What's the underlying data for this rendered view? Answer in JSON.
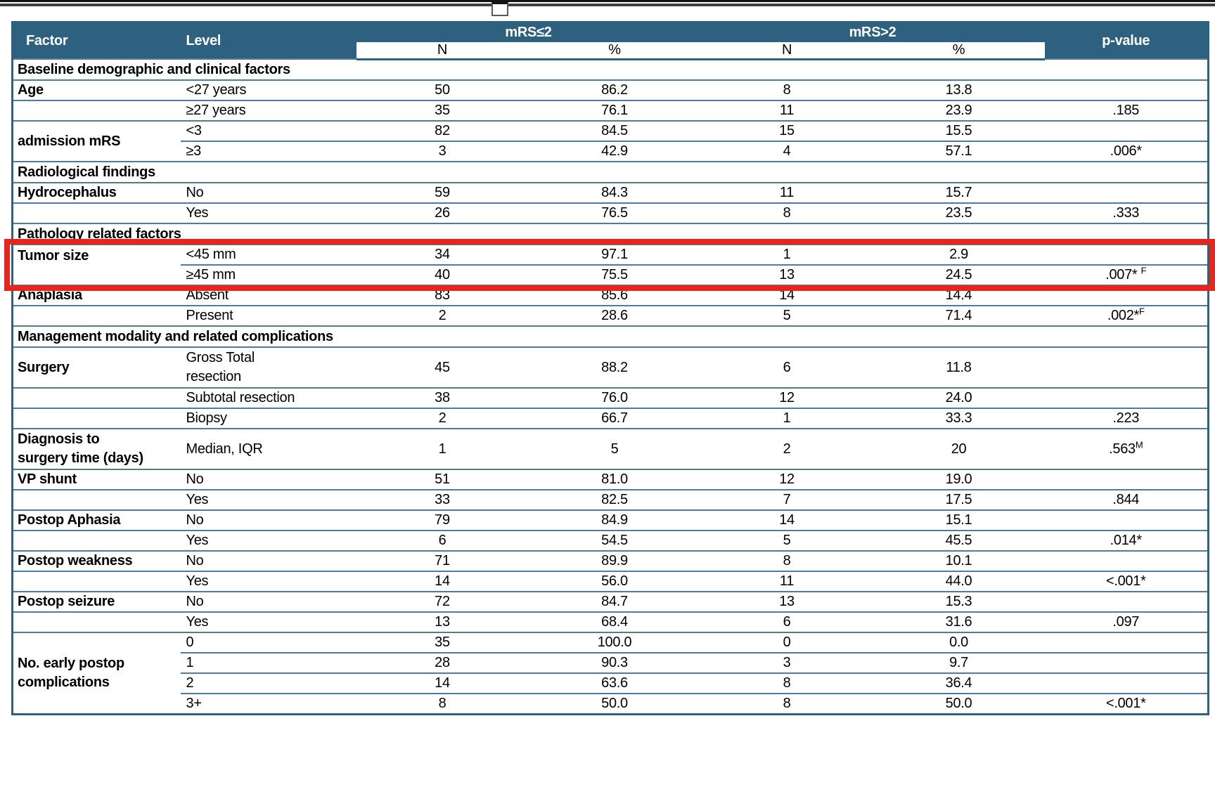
{
  "colors": {
    "header_bg": "#2e617f",
    "row_border": "#4d7d9c",
    "highlight_box": "#e8251c"
  },
  "table": {
    "header": {
      "factor": "Factor",
      "level": "Level",
      "group1": "mRS≤2",
      "group2": "mRS>2",
      "n": "N",
      "pct": "%",
      "p": "p-value"
    },
    "rows": [
      {
        "type": "section",
        "label": "Baseline demographic and clinical factors"
      },
      {
        "type": "data",
        "factor": "Age",
        "level": "<27 years",
        "n1": "50",
        "pct1": "86.2",
        "n2": "8",
        "pct2": "13.8",
        "p": ""
      },
      {
        "type": "data",
        "factor": "",
        "level": "≥27 years",
        "n1": "35",
        "pct1": "76.1",
        "n2": "11",
        "pct2": "23.9",
        "p": ".185"
      },
      {
        "type": "data",
        "factor": "admission mRS",
        "factor_rowspan": 2,
        "level": "<3",
        "n1": "82",
        "pct1": "84.5",
        "n2": "15",
        "pct2": "15.5",
        "p": ""
      },
      {
        "type": "data",
        "factor_skip": true,
        "level": "≥3",
        "n1": "3",
        "pct1": "42.9",
        "n2": "4",
        "pct2": "57.1",
        "p": ".006*"
      },
      {
        "type": "section",
        "label": "Radiological findings"
      },
      {
        "type": "data",
        "factor": "Hydrocephalus",
        "level": "No",
        "n1": "59",
        "pct1": "84.3",
        "n2": "11",
        "pct2": "15.7",
        "p": ""
      },
      {
        "type": "data",
        "factor": "",
        "level": "Yes",
        "n1": "26",
        "pct1": "76.5",
        "n2": "8",
        "pct2": "23.5",
        "p": ".333"
      },
      {
        "type": "section",
        "label": "Pathology related factors"
      },
      {
        "type": "data",
        "factor": "Tumor size",
        "factor_rowspan": 2,
        "factor_valign": "top",
        "level": "<45 mm",
        "n1": "34",
        "pct1": "97.1",
        "n2": "1",
        "pct2": "2.9",
        "p": "",
        "highlight": true
      },
      {
        "type": "data",
        "factor_skip": true,
        "level": "≥45 mm",
        "n1": "40",
        "pct1": "75.5",
        "n2": "13",
        "pct2": "24.5",
        "p": ".007* ",
        "p_sup": "F",
        "highlight": true
      },
      {
        "type": "data",
        "factor": "Anaplasia",
        "level": "Absent",
        "n1": "83",
        "pct1": "85.6",
        "n2": "14",
        "pct2": "14.4",
        "p": ""
      },
      {
        "type": "data",
        "factor": "",
        "level": "Present",
        "n1": "2",
        "pct1": "28.6",
        "n2": "5",
        "pct2": "71.4",
        "p": ".002*",
        "p_sup": "F"
      },
      {
        "type": "section",
        "label": "Management modality and related complications"
      },
      {
        "type": "data",
        "factor": "Surgery",
        "level": "Gross Total\nresection",
        "n1": "45",
        "pct1": "88.2",
        "n2": "6",
        "pct2": "11.8",
        "p": "",
        "tall": true
      },
      {
        "type": "data",
        "factor": "",
        "level": "Subtotal resection",
        "n1": "38",
        "pct1": "76.0",
        "n2": "12",
        "pct2": "24.0",
        "p": ""
      },
      {
        "type": "data",
        "factor": "",
        "level": "Biopsy",
        "n1": "2",
        "pct1": "66.7",
        "n2": "1",
        "pct2": "33.3",
        "p": ".223"
      },
      {
        "type": "data",
        "factor": "Diagnosis to\nsurgery time (days)",
        "level": "Median, IQR",
        "n1": "1",
        "pct1": "5",
        "n2": "2",
        "pct2": "20",
        "p": ".563",
        "p_sup": "M",
        "tall": true
      },
      {
        "type": "data",
        "factor": "VP shunt",
        "level": "No",
        "n1": "51",
        "pct1": "81.0",
        "n2": "12",
        "pct2": "19.0",
        "p": ""
      },
      {
        "type": "data",
        "factor": "",
        "level": "Yes",
        "n1": "33",
        "pct1": "82.5",
        "n2": "7",
        "pct2": "17.5",
        "p": ".844"
      },
      {
        "type": "data",
        "factor": "Postop Aphasia",
        "level": "No",
        "n1": "79",
        "pct1": "84.9",
        "n2": "14",
        "pct2": "15.1",
        "p": ""
      },
      {
        "type": "data",
        "factor": "",
        "level": "Yes",
        "n1": "6",
        "pct1": "54.5",
        "n2": "5",
        "pct2": "45.5",
        "p": ".014*"
      },
      {
        "type": "data",
        "factor": "Postop weakness",
        "level": "No",
        "n1": "71",
        "pct1": "89.9",
        "n2": "8",
        "pct2": "10.1",
        "p": ""
      },
      {
        "type": "data",
        "factor": "",
        "level": "Yes",
        "n1": "14",
        "pct1": "56.0",
        "n2": "11",
        "pct2": "44.0",
        "p": "<.001*"
      },
      {
        "type": "data",
        "factor": "Postop seizure",
        "level": "No",
        "n1": "72",
        "pct1": "84.7",
        "n2": "13",
        "pct2": "15.3",
        "p": ""
      },
      {
        "type": "data",
        "factor": "",
        "level": "Yes",
        "n1": "13",
        "pct1": "68.4",
        "n2": "6",
        "pct2": "31.6",
        "p": ".097"
      },
      {
        "type": "data",
        "factor": "No. early postop\ncomplications",
        "factor_rowspan": 4,
        "level": "0",
        "n1": "35",
        "pct1": "100.0",
        "n2": "0",
        "pct2": "0.0",
        "p": ""
      },
      {
        "type": "data",
        "factor_skip": true,
        "level": "1",
        "n1": "28",
        "pct1": "90.3",
        "n2": "3",
        "pct2": "9.7",
        "p": ""
      },
      {
        "type": "data",
        "factor_skip": true,
        "level": "2",
        "n1": "14",
        "pct1": "63.6",
        "n2": "8",
        "pct2": "36.4",
        "p": ""
      },
      {
        "type": "data",
        "factor_skip": true,
        "level": "3+",
        "n1": "8",
        "pct1": "50.0",
        "n2": "8",
        "pct2": "50.0",
        "p": "<.001*"
      }
    ]
  }
}
